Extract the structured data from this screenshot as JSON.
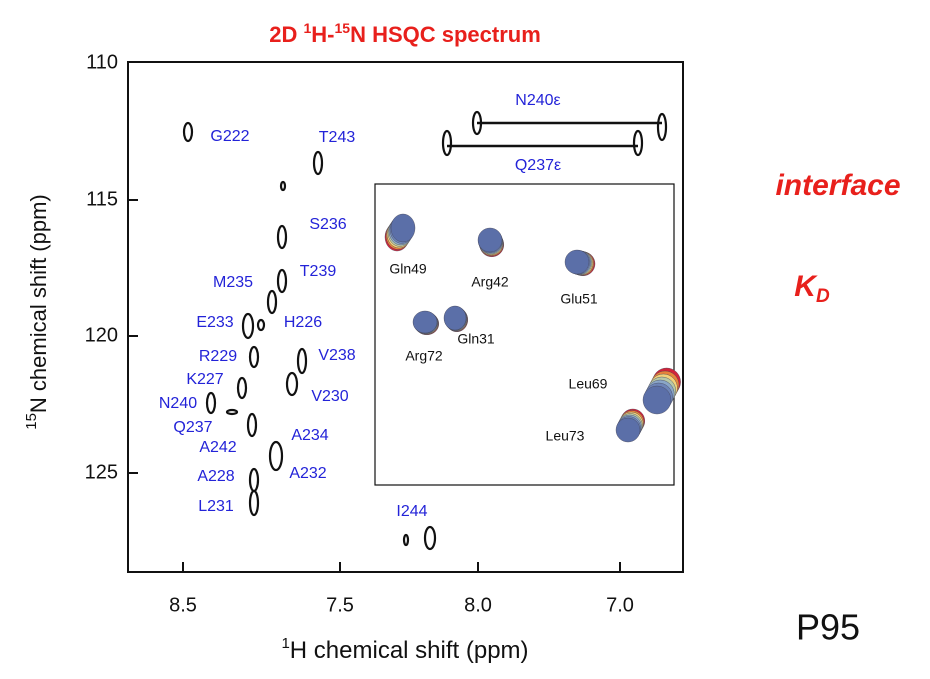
{
  "title": [
    "2D ",
    "1",
    "H-",
    "15",
    "N HSQC spectrum"
  ],
  "y_axis": {
    "label": [
      "15",
      "N chemical shift (ppm)"
    ],
    "ticks": [
      "110",
      "115",
      "120",
      "125"
    ]
  },
  "x_axis": {
    "label": [
      "1",
      "H chemical shift (ppm)"
    ],
    "ticks": [
      "8.5",
      "7.5",
      "8.0",
      "7.0"
    ]
  },
  "peak_labels": [
    "G222",
    "T243",
    "S236",
    "M235",
    "T239",
    "E233",
    "H226",
    "R229",
    "V238",
    "K227",
    "V230",
    "N240",
    "Q237",
    "A242",
    "A234",
    "A228",
    "A232",
    "L231",
    "I244",
    "N240ε",
    "Q237ε"
  ],
  "inset_labels": [
    "Gln49",
    "Arg42",
    "Glu51",
    "Gln31",
    "Arg72",
    "Leu69",
    "Leu73"
  ],
  "side": {
    "interface": "interface",
    "kd": [
      "K",
      "D"
    ],
    "code": "P95"
  }
}
